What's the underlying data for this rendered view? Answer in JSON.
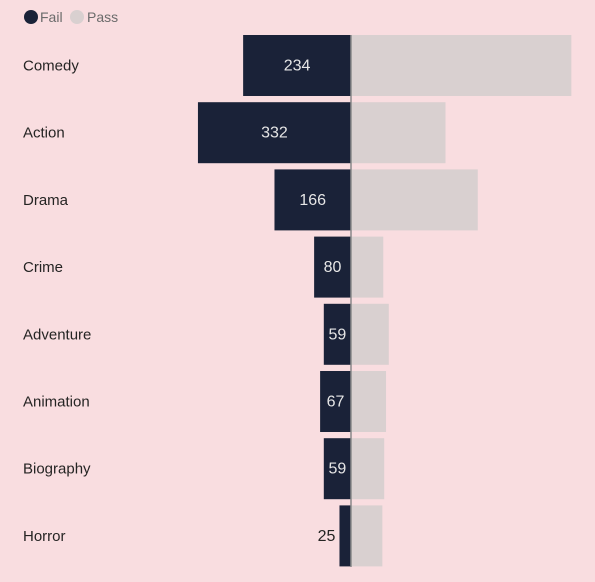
{
  "chart_data": {
    "type": "bar",
    "orientation": "horizontal-diverging",
    "categories": [
      "Comedy",
      "Action",
      "Drama",
      "Crime",
      "Adventure",
      "Animation",
      "Biography",
      "Horror"
    ],
    "series": [
      {
        "name": "Fail",
        "values": [
          234,
          332,
          166,
          80,
          59,
          67,
          59,
          25
        ],
        "color": "#1a2238"
      },
      {
        "name": "Pass",
        "values": [
          478,
          205,
          275,
          70,
          82,
          76,
          72,
          68
        ],
        "color": "#d9d0d0"
      }
    ],
    "data_labels": [
      "234",
      "332",
      "166",
      "80",
      "59",
      "67",
      "59",
      "25"
    ],
    "legend_position": "top-left",
    "background_color": "#f9dde0",
    "axis_color": "#8a8a8a",
    "label_color_inside": "#e6e6e6",
    "label_color_outside": "#252423"
  }
}
